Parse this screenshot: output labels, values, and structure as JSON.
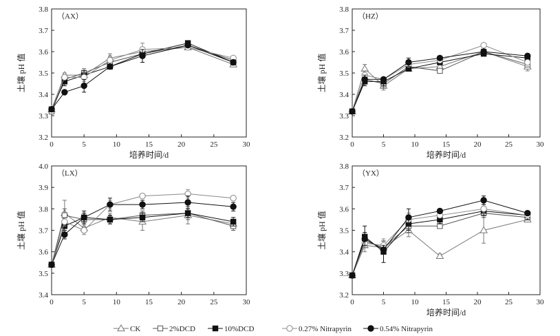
{
  "legend": [
    {
      "name": "CK",
      "marker": "triangle-open",
      "color": "#777777"
    },
    {
      "name": "2%DCD",
      "marker": "square-open",
      "color": "#555555"
    },
    {
      "name": "10%DCD",
      "marker": "square-filled",
      "color": "#111111"
    },
    {
      "name": "0.27% Nitrapyrin",
      "marker": "circle-open",
      "color": "#888888"
    },
    {
      "name": "0.54% Nitrapyrin",
      "marker": "circle-filled",
      "color": "#111111"
    }
  ],
  "chart_data": [
    {
      "type": "line",
      "panel_label": "（AX）",
      "xlabel": "培养时间/d",
      "ylabel": "土壤 pH 值",
      "xlim": [
        0,
        30
      ],
      "ylim": [
        3.2,
        3.8
      ],
      "xticks": [
        0,
        5,
        10,
        15,
        20,
        25,
        30
      ],
      "yticks": [
        3.2,
        3.3,
        3.4,
        3.5,
        3.6,
        3.7,
        3.8
      ],
      "x": [
        0,
        2,
        5,
        9,
        14,
        21,
        28
      ],
      "series": [
        {
          "name": "CK",
          "values": [
            3.33,
            3.49,
            3.49,
            3.57,
            3.6,
            3.62,
            3.54
          ],
          "errors": [
            0.005,
            0.01,
            0.02,
            0.02,
            0.02,
            0.01,
            0.01
          ]
        },
        {
          "name": "2%DCD",
          "values": [
            3.32,
            3.47,
            3.5,
            3.55,
            3.59,
            3.63,
            3.56
          ],
          "errors": [
            0.005,
            0.01,
            0.02,
            0.02,
            0.02,
            0.01,
            0.01
          ]
        },
        {
          "name": "10%DCD",
          "values": [
            3.33,
            3.46,
            3.49,
            3.53,
            3.59,
            3.64,
            3.55
          ],
          "errors": [
            0.005,
            0.02,
            0.02,
            0.01,
            0.02,
            0.01,
            0.01
          ]
        },
        {
          "name": "0.27% Nitrapyrin",
          "values": [
            3.33,
            3.48,
            3.48,
            3.56,
            3.61,
            3.62,
            3.57
          ],
          "errors": [
            0.005,
            0.01,
            0.02,
            0.02,
            0.03,
            0.01,
            0.01
          ]
        },
        {
          "name": "0.54% Nitrapyrin",
          "values": [
            3.33,
            3.41,
            3.44,
            3.53,
            3.58,
            3.63,
            3.55
          ],
          "errors": [
            0.005,
            0.01,
            0.03,
            0.01,
            0.03,
            0.01,
            0.01
          ]
        }
      ]
    },
    {
      "type": "line",
      "panel_label": "（HZ）",
      "xlabel": "培养时间/d",
      "ylabel": "土壤 pH 值",
      "xlim": [
        0,
        30
      ],
      "ylim": [
        3.2,
        3.8
      ],
      "xticks": [
        0,
        5,
        10,
        15,
        20,
        25,
        30
      ],
      "yticks": [
        3.2,
        3.3,
        3.4,
        3.5,
        3.6,
        3.7,
        3.8
      ],
      "x": [
        0,
        2,
        5,
        9,
        14,
        21,
        28
      ],
      "series": [
        {
          "name": "CK",
          "values": [
            3.32,
            3.52,
            3.44,
            3.52,
            3.53,
            3.6,
            3.53
          ],
          "errors": [
            0.005,
            0.02,
            0.02,
            0.01,
            0.01,
            0.01,
            0.02
          ]
        },
        {
          "name": "2%DCD",
          "values": [
            3.32,
            3.47,
            3.45,
            3.53,
            3.51,
            3.6,
            3.54
          ],
          "errors": [
            0.005,
            0.02,
            0.02,
            0.01,
            0.01,
            0.01,
            0.01
          ]
        },
        {
          "name": "10%DCD",
          "values": [
            3.32,
            3.46,
            3.46,
            3.52,
            3.55,
            3.59,
            3.57
          ],
          "errors": [
            0.005,
            0.02,
            0.02,
            0.01,
            0.01,
            0.01,
            0.01
          ]
        },
        {
          "name": "0.27% Nitrapyrin",
          "values": [
            3.32,
            3.49,
            3.47,
            3.54,
            3.56,
            3.63,
            3.55
          ],
          "errors": [
            0.005,
            0.02,
            0.01,
            0.01,
            0.01,
            0.01,
            0.01
          ]
        },
        {
          "name": "0.54% Nitrapyrin",
          "values": [
            3.32,
            3.47,
            3.47,
            3.55,
            3.57,
            3.6,
            3.58
          ],
          "errors": [
            0.005,
            0.02,
            0.01,
            0.02,
            0.01,
            0.01,
            0.01
          ]
        }
      ]
    },
    {
      "type": "line",
      "panel_label": "（LX）",
      "xlabel": "",
      "ylabel": "土壤 pH 值",
      "xlim": [
        0,
        30
      ],
      "ylim": [
        3.4,
        4.0
      ],
      "xticks": [
        0,
        5,
        10,
        15,
        20,
        25,
        30
      ],
      "yticks": [
        3.4,
        3.5,
        3.6,
        3.7,
        3.8,
        3.9,
        4.0
      ],
      "x": [
        0,
        2,
        5,
        9,
        14,
        21,
        28
      ],
      "series": [
        {
          "name": "CK",
          "values": [
            3.54,
            3.78,
            3.71,
            3.76,
            3.74,
            3.77,
            3.73
          ],
          "errors": [
            0.005,
            0.06,
            0.02,
            0.02,
            0.04,
            0.04,
            0.02
          ]
        },
        {
          "name": "2%DCD",
          "values": [
            3.54,
            3.77,
            3.75,
            3.75,
            3.77,
            3.78,
            3.72
          ],
          "errors": [
            0.005,
            0.03,
            0.02,
            0.02,
            0.02,
            0.03,
            0.02
          ]
        },
        {
          "name": "10%DCD",
          "values": [
            3.54,
            3.72,
            3.76,
            3.75,
            3.76,
            3.78,
            3.74
          ],
          "errors": [
            0.005,
            0.02,
            0.02,
            0.02,
            0.02,
            0.02,
            0.02
          ]
        },
        {
          "name": "0.27% Nitrapyrin",
          "values": [
            3.54,
            3.74,
            3.7,
            3.82,
            3.86,
            3.87,
            3.85
          ],
          "errors": [
            0.005,
            0.02,
            0.02,
            0.02,
            0.01,
            0.02,
            0.01
          ]
        },
        {
          "name": "0.54% Nitrapyrin",
          "values": [
            3.54,
            3.68,
            3.76,
            3.82,
            3.82,
            3.83,
            3.81
          ],
          "errors": [
            0.005,
            0.02,
            0.03,
            0.03,
            0.02,
            0.03,
            0.02
          ]
        }
      ]
    },
    {
      "type": "line",
      "panel_label": "（YX）",
      "xlabel": "培养时间/d",
      "ylabel": "土壤 pH 值",
      "xlim": [
        0,
        30
      ],
      "ylim": [
        3.2,
        3.8
      ],
      "xticks": [
        0,
        5,
        10,
        15,
        20,
        25,
        30
      ],
      "yticks": [
        3.2,
        3.3,
        3.4,
        3.5,
        3.6,
        3.7,
        3.8
      ],
      "x": [
        0,
        2,
        5,
        9,
        14,
        21,
        28
      ],
      "series": [
        {
          "name": "CK",
          "values": [
            3.29,
            3.43,
            3.42,
            3.5,
            3.38,
            3.5,
            3.55
          ],
          "errors": [
            0.005,
            0.03,
            0.03,
            0.03,
            0.01,
            0.06,
            0.01
          ]
        },
        {
          "name": "2%DCD",
          "values": [
            3.29,
            3.45,
            3.42,
            3.52,
            3.52,
            3.58,
            3.56
          ],
          "errors": [
            0.005,
            0.03,
            0.02,
            0.03,
            0.01,
            0.02,
            0.01
          ]
        },
        {
          "name": "10%DCD",
          "values": [
            3.29,
            3.47,
            3.4,
            3.53,
            3.55,
            3.59,
            3.57
          ],
          "errors": [
            0.005,
            0.05,
            0.05,
            0.03,
            0.02,
            0.02,
            0.02
          ]
        },
        {
          "name": "0.27% Nitrapyrin",
          "values": [
            3.29,
            3.44,
            3.43,
            3.55,
            3.57,
            3.6,
            3.57
          ],
          "errors": [
            0.005,
            0.02,
            0.03,
            0.03,
            0.01,
            0.02,
            0.01
          ]
        },
        {
          "name": "0.54% Nitrapyrin",
          "values": [
            3.29,
            3.46,
            3.41,
            3.56,
            3.59,
            3.64,
            3.58
          ],
          "errors": [
            0.005,
            0.03,
            0.02,
            0.04,
            0.01,
            0.02,
            0.01
          ]
        }
      ]
    }
  ]
}
